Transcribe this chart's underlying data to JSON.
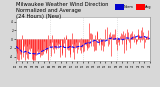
{
  "title1": "Milwaukee Weather Wind Direction",
  "title2": "Normalized and Average",
  "title3": "(24 Hours) (New)",
  "title_fontsize": 3.8,
  "bg_color": "#d8d8d8",
  "plot_bg_color": "#ffffff",
  "grid_color": "#cccccc",
  "bar_color": "#ff0000",
  "avg_color": "#0000ff",
  "n_points": 200,
  "y_min": -5,
  "y_max": 5,
  "legend_norm_color": "#0000cc",
  "legend_avg_color": "#ff0000",
  "seed": 12
}
